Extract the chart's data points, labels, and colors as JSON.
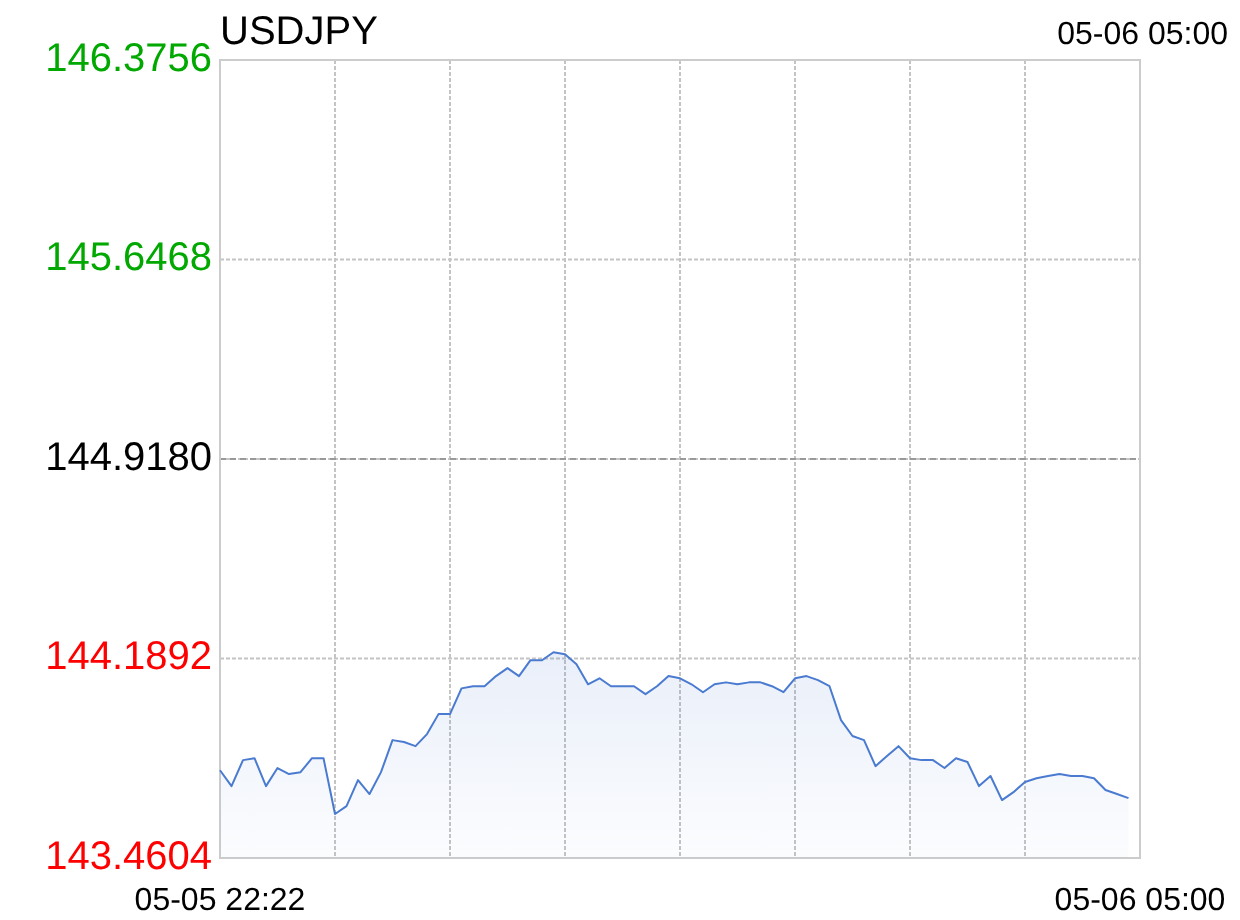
{
  "chart_data": {
    "type": "area",
    "title": "USDJPY",
    "annotations": [
      "05-06 05:00"
    ],
    "categories": [
      "05-05 22:22",
      null,
      null,
      null,
      null,
      null,
      null,
      null,
      null,
      null,
      null,
      null,
      null,
      null,
      null,
      null,
      null,
      null,
      null,
      null,
      null,
      null,
      null,
      null,
      null,
      null,
      null,
      null,
      null,
      null,
      null,
      null,
      null,
      null,
      null,
      null,
      null,
      null,
      null,
      null,
      null,
      null,
      null,
      null,
      null,
      null,
      null,
      null,
      null,
      null,
      null,
      null,
      null,
      null,
      null,
      null,
      null,
      null,
      null,
      null,
      null,
      null,
      null,
      null,
      null,
      null,
      null,
      null,
      null,
      null,
      null,
      null,
      null,
      null,
      null,
      null,
      null,
      null,
      null,
      null,
      "05-06 05:00"
    ],
    "series": [
      {
        "color": "#4a7bd0",
        "values": [
          143.781,
          143.723,
          143.818,
          143.825,
          143.723,
          143.789,
          143.767,
          143.774,
          143.825,
          143.825,
          143.621,
          143.65,
          143.745,
          143.694,
          143.774,
          143.891,
          143.884,
          143.869,
          143.913,
          143.986,
          143.986,
          144.08,
          144.088,
          144.088,
          144.125,
          144.154,
          144.125,
          144.183,
          144.183,
          144.212,
          144.205,
          144.168,
          144.095,
          144.117,
          144.088,
          144.088,
          144.088,
          144.059,
          144.088,
          144.125,
          144.117,
          144.095,
          144.066,
          144.095,
          144.102,
          144.095,
          144.102,
          144.102,
          144.088,
          144.066,
          144.117,
          144.125,
          144.11,
          144.088,
          143.964,
          143.906,
          143.891,
          143.796,
          143.833,
          143.869,
          143.825,
          143.818,
          143.818,
          143.789,
          143.825,
          143.811,
          143.723,
          143.76,
          143.672,
          143.701,
          143.738,
          143.752,
          143.76,
          143.767,
          143.76,
          143.76,
          143.752,
          143.709,
          143.694,
          143.679,
          null
        ]
      }
    ],
    "ylim": [
      143.4604,
      146.3756
    ],
    "yticks": [
      {
        "value": 143.4604,
        "label": "143.4604"
      },
      {
        "value": 144.1892,
        "label": "144.1892"
      },
      {
        "value": 144.918,
        "label": "144.9180"
      },
      {
        "value": 145.6468,
        "label": "145.6468"
      },
      {
        "value": 146.3756,
        "label": "146.3756"
      }
    ],
    "ref_lines": [
      {
        "axis": "y",
        "value": 144.918,
        "color": "#999999",
        "line_style": "dashed"
      }
    ],
    "grid": true
  }
}
